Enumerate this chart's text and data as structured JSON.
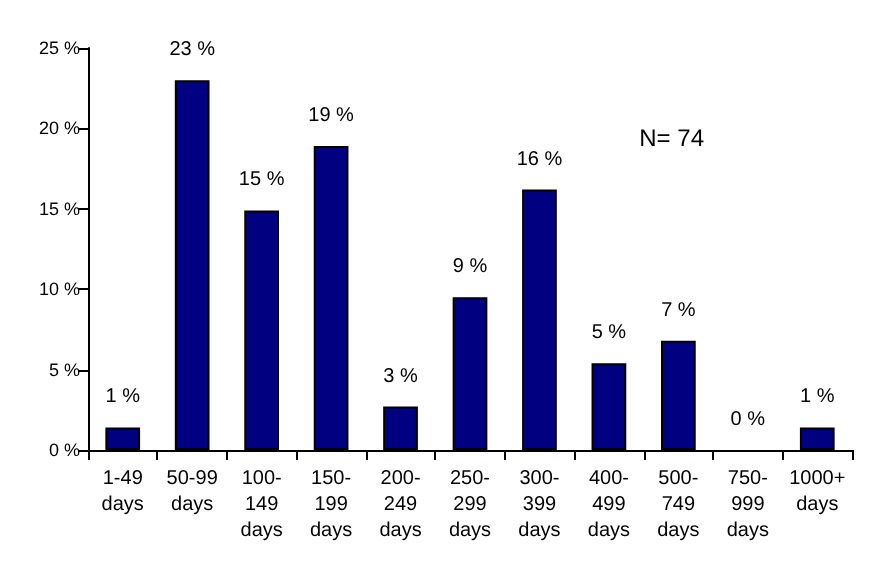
{
  "chart_data": {
    "type": "bar",
    "categories": [
      "1-49 days",
      "50-99 days",
      "100-149 days",
      "150-199 days",
      "200-249 days",
      "250-299 days",
      "300-399 days",
      "400-499 days",
      "500-749 days",
      "750-999 days",
      "1000+ days"
    ],
    "values": [
      1.4,
      23.0,
      14.9,
      18.9,
      2.7,
      9.5,
      16.2,
      5.4,
      6.8,
      0,
      1.4
    ],
    "value_labels": [
      "1 %",
      "23 %",
      "15 %",
      "19 %",
      "3 %",
      "9 %",
      "16 %",
      "5 %",
      "7 %",
      "0 %",
      "1 %"
    ],
    "color": "#000080",
    "ylim": [
      0,
      25
    ],
    "yticks": [
      {
        "value": 0,
        "label": "0 %"
      },
      {
        "value": 5,
        "label": "5 %"
      },
      {
        "value": 10,
        "label": "10 %"
      },
      {
        "value": 15,
        "label": "15 %"
      },
      {
        "value": 20,
        "label": "20 %"
      },
      {
        "value": 25,
        "label": "25 %"
      }
    ],
    "grid": false,
    "annotations": [
      "N= 74"
    ]
  }
}
